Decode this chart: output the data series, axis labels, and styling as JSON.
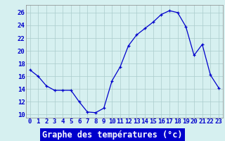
{
  "hours": [
    0,
    1,
    2,
    3,
    4,
    5,
    6,
    7,
    8,
    9,
    10,
    11,
    12,
    13,
    14,
    15,
    16,
    17,
    18,
    19,
    20,
    21,
    22,
    23
  ],
  "temps": [
    17.0,
    16.0,
    14.5,
    13.8,
    13.8,
    13.8,
    12.0,
    10.4,
    10.3,
    11.0,
    15.3,
    17.5,
    20.8,
    22.5,
    23.5,
    24.5,
    25.7,
    26.3,
    26.0,
    23.8,
    19.3,
    21.0,
    16.2,
    14.2
  ],
  "line_color": "#0000cc",
  "marker": "+",
  "bg_color": "#d6f0f0",
  "grid_color": "#aacccc",
  "xlabel": "Graphe des températures (°c)",
  "xlabel_color": "#ffffff",
  "xlabel_bg": "#0000cc",
  "ylabel_ticks": [
    10,
    12,
    14,
    16,
    18,
    20,
    22,
    24,
    26
  ],
  "ylim": [
    9.5,
    27.2
  ],
  "xlim": [
    -0.5,
    23.5
  ],
  "tick_label_color": "#0000cc",
  "axis_fontsize": 6.5,
  "xlabel_fontsize": 8.5
}
